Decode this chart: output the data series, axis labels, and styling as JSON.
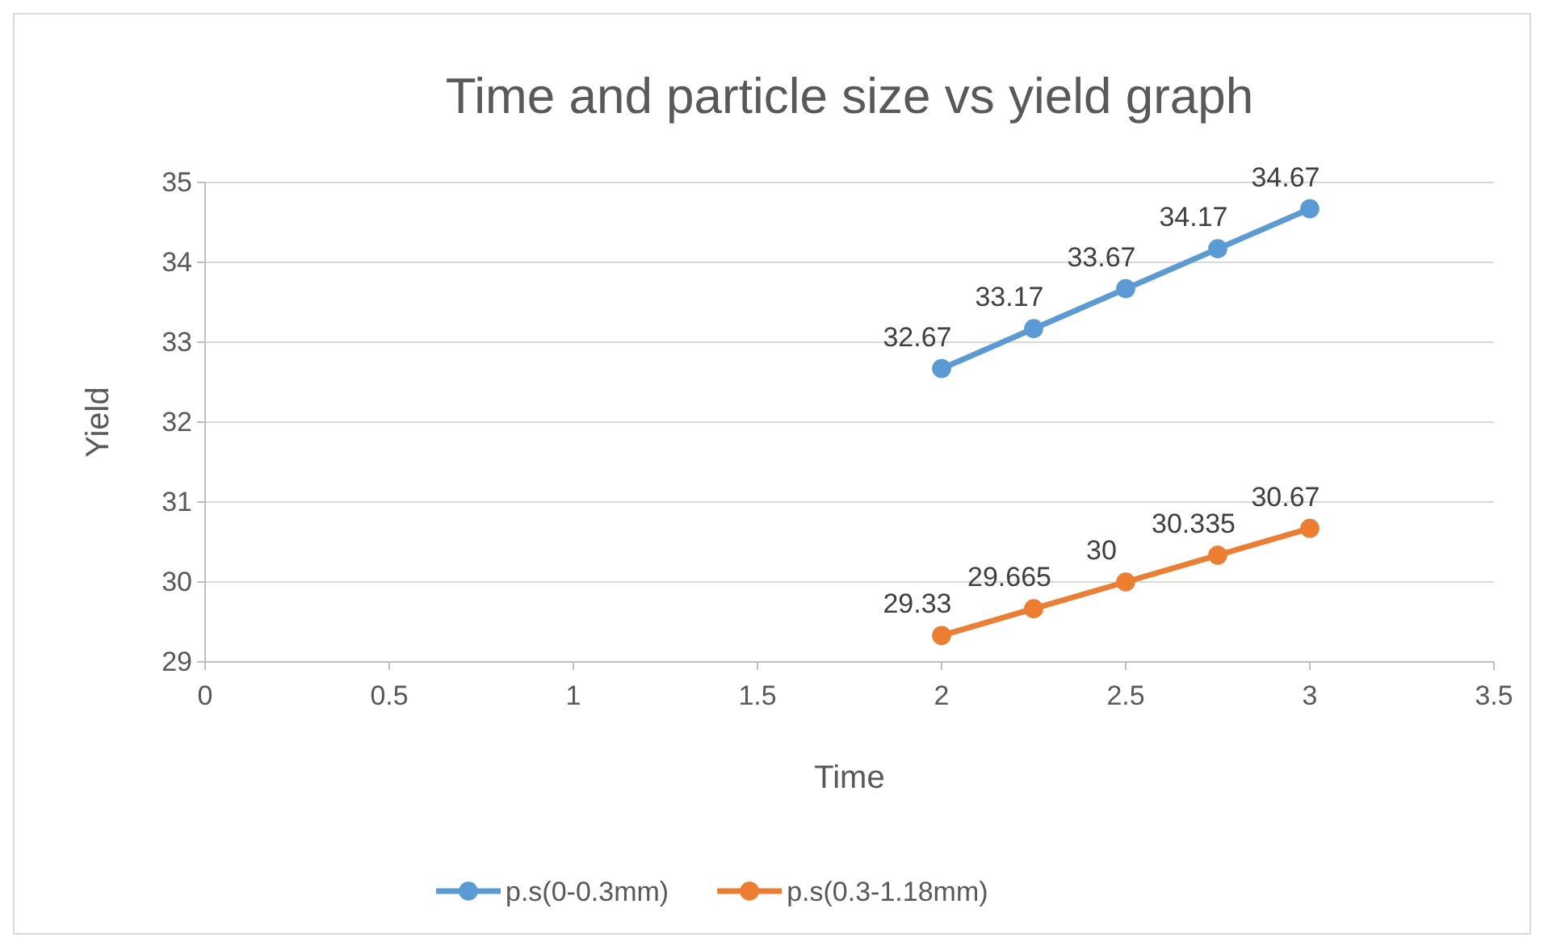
{
  "chart_data": {
    "type": "line",
    "title": "Time and particle size vs yield graph",
    "xlabel": "Time",
    "ylabel": "Yield",
    "xlim": [
      0,
      3.5
    ],
    "xticks": [
      0,
      0.5,
      1,
      1.5,
      2,
      2.5,
      3,
      3.5
    ],
    "ylim": [
      29,
      35
    ],
    "yticks": [
      29,
      30,
      31,
      32,
      33,
      34,
      35
    ],
    "grid": "y",
    "legend": "bottom",
    "marker": "circle",
    "line_style": "solid",
    "data_labels": true,
    "series": [
      {
        "name": "p.s(0-0.3mm)",
        "color": "#5b9bd5",
        "x": [
          2,
          2.25,
          2.5,
          2.75,
          3
        ],
        "values": [
          32.67,
          33.17,
          33.67,
          34.17,
          34.67
        ]
      },
      {
        "name": "p.s(0.3-1.18mm)",
        "color": "#ed7d31",
        "x": [
          2,
          2.25,
          2.5,
          2.75,
          3
        ],
        "values": [
          29.33,
          29.665,
          30,
          30.335,
          30.67
        ]
      }
    ]
  }
}
